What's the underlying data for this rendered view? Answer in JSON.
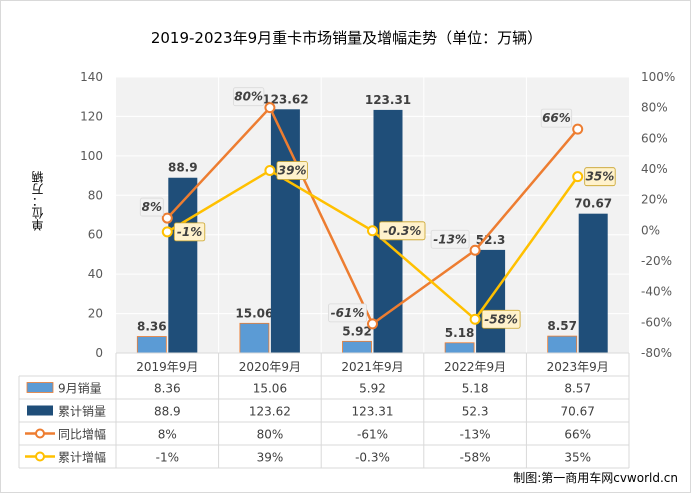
{
  "chart_data": {
    "type": "bar",
    "title": "2019-2023年9月重卡市场销量及增幅走势（单位：万辆）",
    "ylabel": "单位：万辆",
    "ylim": [
      0,
      140
    ],
    "y2lim": [
      -80,
      100
    ],
    "yticks": [
      "0",
      "20",
      "40",
      "60",
      "80",
      "100",
      "120",
      "140"
    ],
    "y2ticks": [
      "-80%",
      "-60%",
      "-40%",
      "-20%",
      "0%",
      "20%",
      "40%",
      "60%",
      "80%",
      "100%"
    ],
    "categories": [
      "2019年9月",
      "2020年9月",
      "2021年9月",
      "2022年9月",
      "2023年9月"
    ],
    "series": [
      {
        "name": "9月销量",
        "kind": "bar",
        "color": "#5b9bd5",
        "values": [
          8.36,
          15.06,
          5.92,
          5.18,
          8.57
        ],
        "labels": [
          "8.36",
          "15.06",
          "5.92",
          "5.18",
          "8.57"
        ]
      },
      {
        "name": "累计销量",
        "kind": "bar",
        "color": "#1f4e79",
        "values": [
          88.9,
          123.62,
          123.31,
          52.3,
          70.67
        ],
        "labels": [
          "88.9",
          "123.62",
          "123.31",
          "52.3",
          "70.67"
        ]
      },
      {
        "name": "同比增幅",
        "kind": "line",
        "color": "#ed7d31",
        "values": [
          8,
          80,
          -61,
          -13,
          66
        ],
        "labels": [
          "8%",
          "80%",
          "-61%",
          "-13%",
          "66%"
        ]
      },
      {
        "name": "累计增幅",
        "kind": "line",
        "color": "#ffc000",
        "values": [
          -1,
          39,
          -0.3,
          -58,
          35
        ],
        "labels": [
          "-1%",
          "39%",
          "-0.3%",
          "-58%",
          "35%"
        ]
      }
    ],
    "grid": true,
    "legend": "table-below"
  },
  "source": "制图:第一商用车网cvworld.cn"
}
